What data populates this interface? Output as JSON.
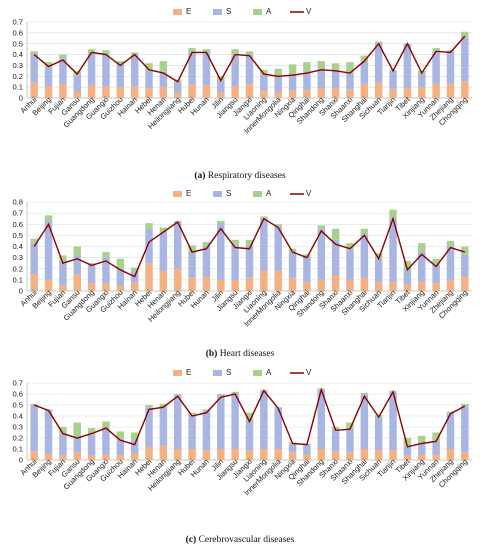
{
  "chart_data": [
    {
      "type": "bar",
      "stacked": true,
      "title": "",
      "caption_label": "(a)",
      "caption_text": " Respiratory diseases",
      "ylim": [
        0,
        0.7
      ],
      "yticks": [
        0,
        0.1,
        0.2,
        0.3,
        0.4,
        0.5,
        0.6,
        0.7
      ],
      "grid": true,
      "legend_position": "top",
      "categories": [
        "Anhui",
        "Beijing",
        "Fujian",
        "Gansu",
        "Guangdong",
        "Guangxi",
        "Guizhou",
        "Hainan",
        "Hebei",
        "Henan",
        "Heilongjiang",
        "Hubei",
        "Hunan",
        "Jilin",
        "Jiangsu",
        "Jiangxi",
        "Liaoning",
        "InnerMongolia",
        "Ningxia",
        "Qinghai",
        "Shandong",
        "Shanxi",
        "Shaanxi",
        "Shanghai",
        "Sichuan",
        "Tianjin",
        "Tibet",
        "Xinjiang",
        "Yunnan",
        "Zhejiang",
        "Chongqing"
      ],
      "series": [
        {
          "name": "E",
          "kind": "bar",
          "color": "#f4b183",
          "values": [
            0.14,
            0.11,
            0.13,
            0.06,
            0.12,
            0.11,
            0.1,
            0.11,
            0.09,
            0.1,
            0.05,
            0.13,
            0.12,
            0.05,
            0.11,
            0.13,
            0.07,
            0.06,
            0.07,
            0.07,
            0.09,
            0.09,
            0.08,
            0.13,
            0.14,
            0.08,
            0.09,
            0.1,
            0.13,
            0.13,
            0.15
          ]
        },
        {
          "name": "S",
          "kind": "bar",
          "color": "#aab6e2",
          "values": [
            0.26,
            0.18,
            0.23,
            0.15,
            0.29,
            0.29,
            0.21,
            0.28,
            0.17,
            0.14,
            0.1,
            0.29,
            0.3,
            0.11,
            0.28,
            0.26,
            0.15,
            0.14,
            0.14,
            0.16,
            0.17,
            0.16,
            0.15,
            0.21,
            0.36,
            0.17,
            0.41,
            0.13,
            0.29,
            0.29,
            0.41
          ]
        },
        {
          "name": "A",
          "kind": "bar",
          "color": "#a9d18e",
          "values": [
            0.03,
            0.04,
            0.04,
            0.04,
            0.04,
            0.04,
            0.03,
            0.03,
            0.06,
            0.1,
            0.02,
            0.04,
            0.03,
            0.04,
            0.06,
            0.04,
            0.04,
            0.07,
            0.1,
            0.1,
            0.08,
            0.07,
            0.1,
            0.05,
            0.02,
            0.01,
            0.0,
            0.02,
            0.04,
            0.02,
            0.05
          ]
        },
        {
          "name": "V",
          "kind": "line",
          "color": "#8b0000",
          "values": [
            0.4,
            0.29,
            0.35,
            0.22,
            0.42,
            0.4,
            0.3,
            0.4,
            0.26,
            0.23,
            0.15,
            0.42,
            0.42,
            0.16,
            0.4,
            0.39,
            0.22,
            0.2,
            0.21,
            0.23,
            0.26,
            0.25,
            0.23,
            0.34,
            0.5,
            0.25,
            0.5,
            0.23,
            0.43,
            0.42,
            0.57
          ]
        }
      ]
    },
    {
      "type": "bar",
      "stacked": true,
      "title": "",
      "caption_label": "(b)",
      "caption_text": " Heart diseases",
      "ylim": [
        0,
        0.8
      ],
      "yticks": [
        0,
        0.1,
        0.2,
        0.3,
        0.4,
        0.5,
        0.6,
        0.7,
        0.8
      ],
      "grid": true,
      "legend_position": "top",
      "categories": [
        "Anhui",
        "Beijing",
        "Fujian",
        "Gansu",
        "Guangdong",
        "Guangxi",
        "Guizhou",
        "Hainan",
        "Hebei",
        "Henan",
        "Heilongjiang",
        "Hubei",
        "Hunan",
        "Jilin",
        "Jiangsu",
        "Jiangxi",
        "Liaoning",
        "InnerMongolia",
        "Ningxia",
        "Qinghai",
        "Shandong",
        "Shanxi",
        "Shaanxi",
        "Shanghai",
        "Sichuan",
        "Tianjin",
        "Tibet",
        "Xinjiang",
        "Yunnan",
        "Zhejiang",
        "Chongqing"
      ],
      "series": [
        {
          "name": "E",
          "kind": "bar",
          "color": "#f4b183",
          "values": [
            0.15,
            0.1,
            0.05,
            0.15,
            0.07,
            0.07,
            0.05,
            0.08,
            0.25,
            0.18,
            0.2,
            0.12,
            0.13,
            0.1,
            0.1,
            0.12,
            0.18,
            0.18,
            0.12,
            0.08,
            0.1,
            0.14,
            0.1,
            0.12,
            0.08,
            0.08,
            0.06,
            0.08,
            0.07,
            0.1,
            0.13
          ]
        },
        {
          "name": "S",
          "kind": "bar",
          "color": "#aab6e2",
          "values": [
            0.28,
            0.53,
            0.22,
            0.17,
            0.16,
            0.23,
            0.15,
            0.1,
            0.31,
            0.35,
            0.42,
            0.24,
            0.27,
            0.5,
            0.32,
            0.29,
            0.47,
            0.4,
            0.23,
            0.23,
            0.46,
            0.32,
            0.27,
            0.39,
            0.21,
            0.57,
            0.13,
            0.27,
            0.17,
            0.3,
            0.2
          ]
        },
        {
          "name": "A",
          "kind": "bar",
          "color": "#a9d18e",
          "values": [
            0.04,
            0.05,
            0.05,
            0.08,
            0.02,
            0.05,
            0.09,
            0.03,
            0.05,
            0.04,
            0.01,
            0.05,
            0.04,
            0.03,
            0.04,
            0.05,
            0.02,
            0.02,
            0.03,
            0.02,
            0.03,
            0.1,
            0.06,
            0.05,
            0.05,
            0.08,
            0.08,
            0.08,
            0.05,
            0.05,
            0.07
          ]
        },
        {
          "name": "V",
          "kind": "line",
          "color": "#8b0000",
          "values": [
            0.4,
            0.6,
            0.25,
            0.29,
            0.23,
            0.27,
            0.19,
            0.13,
            0.44,
            0.53,
            0.62,
            0.35,
            0.38,
            0.56,
            0.39,
            0.38,
            0.65,
            0.57,
            0.35,
            0.3,
            0.54,
            0.42,
            0.38,
            0.5,
            0.29,
            0.65,
            0.19,
            0.33,
            0.22,
            0.39,
            0.35
          ]
        }
      ]
    },
    {
      "type": "bar",
      "stacked": true,
      "title": "",
      "caption_label": "(c)",
      "caption_text": " Cerebrovascular diseases",
      "ylim": [
        0,
        0.7
      ],
      "yticks": [
        0,
        0.1,
        0.2,
        0.3,
        0.4,
        0.5,
        0.6,
        0.7
      ],
      "grid": true,
      "legend_position": "top",
      "categories": [
        "Anhui",
        "Beijing",
        "Fujian",
        "Gansu",
        "Guangdong",
        "Guangxi",
        "Guizhou",
        "Hainan",
        "Hebei",
        "Henan",
        "Heilongjiang",
        "Hubei",
        "Hunan",
        "Jilin",
        "Jiangsu",
        "Jiangxi",
        "Liaoning",
        "InnerMongolia",
        "Ningxia",
        "Qinghai",
        "Shandong",
        "Shanxi",
        "Shaanxi",
        "Shanghai",
        "Sichuan",
        "Tianjin",
        "Tibet",
        "Xinjiang",
        "Yunnan",
        "Zhejiang",
        "Chongqing"
      ],
      "series": [
        {
          "name": "E",
          "kind": "bar",
          "color": "#f4b183",
          "values": [
            0.08,
            0.06,
            0.04,
            0.07,
            0.04,
            0.05,
            0.04,
            0.06,
            0.12,
            0.13,
            0.1,
            0.1,
            0.09,
            0.1,
            0.1,
            0.09,
            0.1,
            0.1,
            0.07,
            0.05,
            0.1,
            0.08,
            0.07,
            0.1,
            0.09,
            0.09,
            0.04,
            0.05,
            0.05,
            0.1,
            0.07
          ]
        },
        {
          "name": "S",
          "kind": "bar",
          "color": "#aab6e2",
          "values": [
            0.42,
            0.4,
            0.2,
            0.13,
            0.19,
            0.23,
            0.15,
            0.12,
            0.36,
            0.35,
            0.48,
            0.31,
            0.36,
            0.48,
            0.5,
            0.28,
            0.53,
            0.38,
            0.08,
            0.1,
            0.54,
            0.2,
            0.22,
            0.49,
            0.3,
            0.53,
            0.08,
            0.1,
            0.13,
            0.32,
            0.42
          ]
        },
        {
          "name": "A",
          "kind": "bar",
          "color": "#a9d18e",
          "values": [
            0.01,
            0.0,
            0.06,
            0.14,
            0.06,
            0.07,
            0.07,
            0.07,
            0.02,
            0.03,
            0.02,
            0.02,
            0.01,
            0.02,
            0.02,
            0.06,
            0.01,
            0.0,
            0.01,
            0.0,
            0.01,
            0.02,
            0.05,
            0.02,
            0.02,
            0.01,
            0.08,
            0.07,
            0.07,
            0.02,
            0.02
          ]
        },
        {
          "name": "V",
          "kind": "line",
          "color": "#8b0000",
          "values": [
            0.5,
            0.45,
            0.24,
            0.2,
            0.24,
            0.29,
            0.18,
            0.14,
            0.46,
            0.48,
            0.58,
            0.4,
            0.43,
            0.57,
            0.6,
            0.35,
            0.63,
            0.47,
            0.15,
            0.14,
            0.64,
            0.27,
            0.28,
            0.58,
            0.39,
            0.62,
            0.12,
            0.15,
            0.17,
            0.42,
            0.49
          ]
        }
      ]
    }
  ]
}
